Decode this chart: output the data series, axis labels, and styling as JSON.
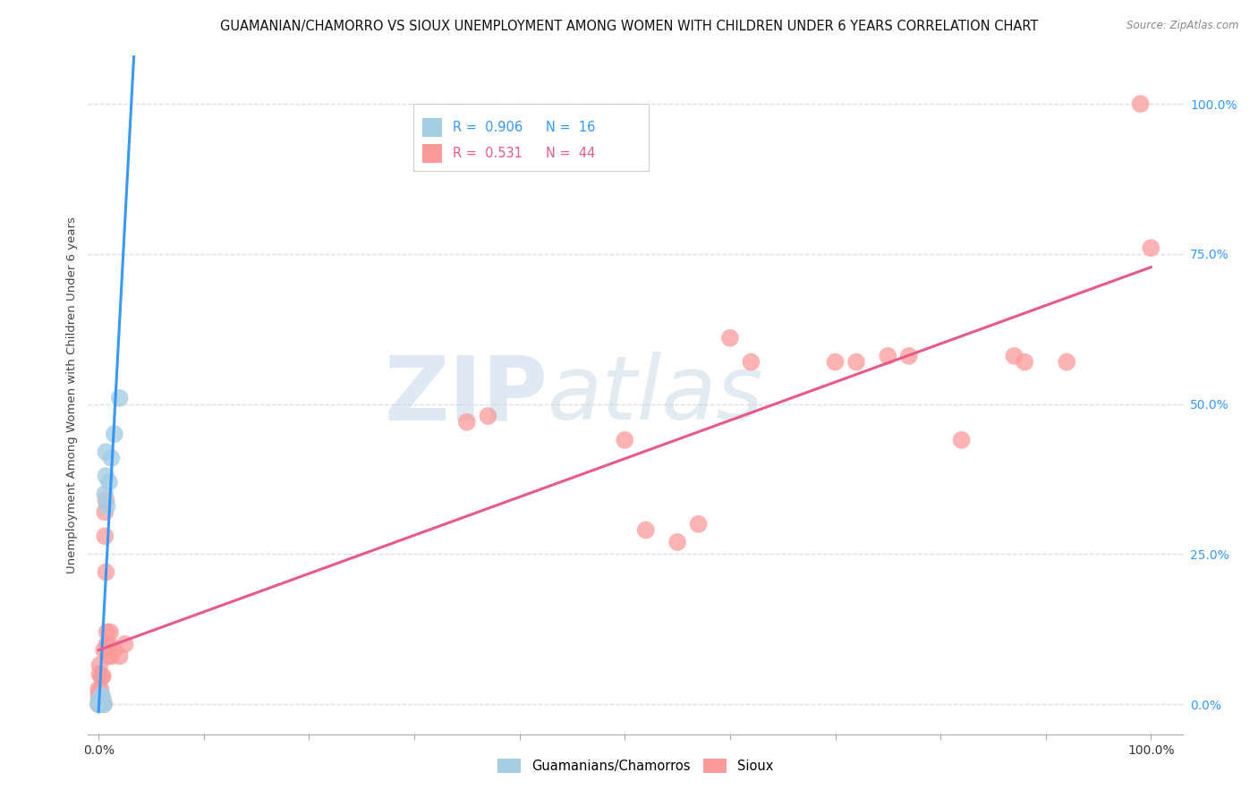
{
  "title": "GUAMANIAN/CHAMORRO VS SIOUX UNEMPLOYMENT AMONG WOMEN WITH CHILDREN UNDER 6 YEARS CORRELATION CHART",
  "source": "Source: ZipAtlas.com",
  "ylabel": "Unemployment Among Women with Children Under 6 years",
  "watermark_zip": "ZIP",
  "watermark_atlas": "atlas",
  "legend_blue_r": "0.906",
  "legend_blue_n": "16",
  "legend_pink_r": "0.531",
  "legend_pink_n": "44",
  "legend_label_blue": "Guamanians/Chamorros",
  "legend_label_pink": "Sioux",
  "blue_color": "#a6cee3",
  "pink_color": "#fb9a99",
  "blue_line_color": "#3399ff",
  "pink_line_color": "#e8598a",
  "blue_r_color": "#3399ff",
  "pink_r_color": "#e8598a",
  "blue_scatter": [
    [
      0.0,
      0.0
    ],
    [
      0.0,
      0.005
    ],
    [
      0.002,
      0.0
    ],
    [
      0.003,
      0.0
    ],
    [
      0.003,
      0.015
    ],
    [
      0.004,
      0.0
    ],
    [
      0.004,
      0.01
    ],
    [
      0.005,
      0.0
    ],
    [
      0.006,
      0.35
    ],
    [
      0.007,
      0.38
    ],
    [
      0.007,
      0.42
    ],
    [
      0.008,
      0.33
    ],
    [
      0.01,
      0.37
    ],
    [
      0.012,
      0.41
    ],
    [
      0.015,
      0.45
    ],
    [
      0.02,
      0.51
    ]
  ],
  "pink_scatter": [
    [
      0.0,
      0.0
    ],
    [
      0.0,
      0.0
    ],
    [
      0.0,
      0.015
    ],
    [
      0.0,
      0.025
    ],
    [
      0.001,
      0.05
    ],
    [
      0.001,
      0.065
    ],
    [
      0.002,
      0.0
    ],
    [
      0.002,
      0.025
    ],
    [
      0.003,
      0.045
    ],
    [
      0.003,
      0.0
    ],
    [
      0.004,
      0.047
    ],
    [
      0.005,
      0.09
    ],
    [
      0.005,
      0.0
    ],
    [
      0.006,
      0.28
    ],
    [
      0.006,
      0.32
    ],
    [
      0.007,
      0.34
    ],
    [
      0.007,
      0.22
    ],
    [
      0.008,
      0.12
    ],
    [
      0.008,
      0.1
    ],
    [
      0.009,
      0.08
    ],
    [
      0.01,
      0.1
    ],
    [
      0.011,
      0.12
    ],
    [
      0.012,
      0.08
    ],
    [
      0.015,
      0.09
    ],
    [
      0.02,
      0.08
    ],
    [
      0.025,
      0.1
    ],
    [
      0.35,
      0.47
    ],
    [
      0.37,
      0.48
    ],
    [
      0.5,
      0.44
    ],
    [
      0.52,
      0.29
    ],
    [
      0.55,
      0.27
    ],
    [
      0.57,
      0.3
    ],
    [
      0.6,
      0.61
    ],
    [
      0.62,
      0.57
    ],
    [
      0.7,
      0.57
    ],
    [
      0.72,
      0.57
    ],
    [
      0.75,
      0.58
    ],
    [
      0.77,
      0.58
    ],
    [
      0.82,
      0.44
    ],
    [
      0.87,
      0.58
    ],
    [
      0.88,
      0.57
    ],
    [
      0.92,
      0.57
    ],
    [
      0.99,
      1.0
    ],
    [
      1.0,
      0.76
    ]
  ],
  "ytick_labels": [
    "0.0%",
    "25.0%",
    "50.0%",
    "75.0%",
    "100.0%"
  ],
  "ytick_values": [
    0.0,
    0.25,
    0.5,
    0.75,
    1.0
  ],
  "xtick_values": [
    0.0,
    0.1,
    0.2,
    0.3,
    0.4,
    0.5,
    0.6,
    0.7,
    0.8,
    0.9,
    1.0
  ],
  "grid_color": "#dddddd",
  "background_color": "#ffffff",
  "title_fontsize": 10.5,
  "source_fontsize": 8.5,
  "axis_label_fontsize": 9.5,
  "tick_fontsize": 10
}
